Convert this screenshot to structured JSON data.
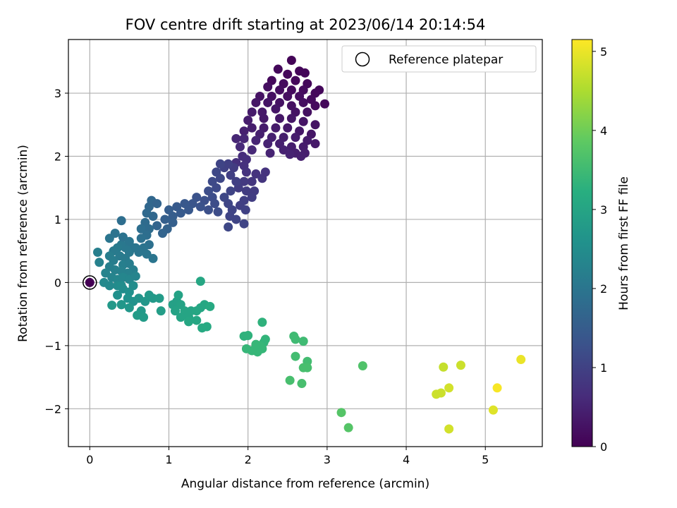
{
  "chart_data": {
    "type": "scatter",
    "title": "FOV centre drift starting at 2023/06/14 20:14:54",
    "xlabel": "Angular distance from reference (arcmin)",
    "ylabel": "Rotation from reference (arcmin)",
    "xlim": [
      -0.27,
      5.72
    ],
    "ylim": [
      -2.6,
      3.85
    ],
    "xticks": [
      0,
      1,
      2,
      3,
      4,
      5
    ],
    "yticks": [
      -2,
      -1,
      0,
      1,
      2,
      3
    ],
    "grid": true,
    "legend": {
      "position": "top-right",
      "entries": [
        "Reference platepar"
      ]
    },
    "colorbar": {
      "label": "Hours from first FF file",
      "min": 0,
      "max": 5.15,
      "ticks": [
        0,
        1,
        2,
        3,
        4,
        5
      ],
      "colormap": "viridis"
    },
    "reference_point": {
      "x": 0,
      "y": 0
    },
    "points": [
      {
        "x": 2.55,
        "y": 3.52,
        "h": 0.05
      },
      {
        "x": 2.38,
        "y": 3.38,
        "h": 0.1
      },
      {
        "x": 2.5,
        "y": 3.3,
        "h": 0.1
      },
      {
        "x": 2.65,
        "y": 3.35,
        "h": 0.08
      },
      {
        "x": 2.72,
        "y": 3.32,
        "h": 0.08
      },
      {
        "x": 2.3,
        "y": 3.2,
        "h": 0.12
      },
      {
        "x": 2.45,
        "y": 3.15,
        "h": 0.15
      },
      {
        "x": 2.6,
        "y": 3.2,
        "h": 0.12
      },
      {
        "x": 2.75,
        "y": 3.15,
        "h": 0.1
      },
      {
        "x": 2.9,
        "y": 3.05,
        "h": 0.1
      },
      {
        "x": 2.85,
        "y": 3.0,
        "h": 0.12
      },
      {
        "x": 2.7,
        "y": 3.05,
        "h": 0.15
      },
      {
        "x": 2.55,
        "y": 3.05,
        "h": 0.15
      },
      {
        "x": 2.4,
        "y": 3.05,
        "h": 0.18
      },
      {
        "x": 2.25,
        "y": 3.1,
        "h": 0.2
      },
      {
        "x": 2.15,
        "y": 2.95,
        "h": 0.25
      },
      {
        "x": 2.3,
        "y": 2.95,
        "h": 0.22
      },
      {
        "x": 2.5,
        "y": 2.95,
        "h": 0.2
      },
      {
        "x": 2.65,
        "y": 2.95,
        "h": 0.18
      },
      {
        "x": 2.8,
        "y": 2.9,
        "h": 0.15
      },
      {
        "x": 2.97,
        "y": 2.83,
        "h": 0.1
      },
      {
        "x": 2.85,
        "y": 2.8,
        "h": 0.15
      },
      {
        "x": 2.7,
        "y": 2.85,
        "h": 0.2
      },
      {
        "x": 2.55,
        "y": 2.8,
        "h": 0.22
      },
      {
        "x": 2.4,
        "y": 2.85,
        "h": 0.25
      },
      {
        "x": 2.25,
        "y": 2.85,
        "h": 0.28
      },
      {
        "x": 2.1,
        "y": 2.85,
        "h": 0.3
      },
      {
        "x": 2.35,
        "y": 2.75,
        "h": 0.3
      },
      {
        "x": 2.6,
        "y": 2.7,
        "h": 0.25
      },
      {
        "x": 2.75,
        "y": 2.7,
        "h": 0.22
      },
      {
        "x": 2.18,
        "y": 2.7,
        "h": 0.35
      },
      {
        "x": 2.05,
        "y": 2.7,
        "h": 0.38
      },
      {
        "x": 2.0,
        "y": 2.57,
        "h": 0.4
      },
      {
        "x": 2.2,
        "y": 2.6,
        "h": 0.35
      },
      {
        "x": 2.4,
        "y": 2.6,
        "h": 0.32
      },
      {
        "x": 2.55,
        "y": 2.6,
        "h": 0.3
      },
      {
        "x": 2.7,
        "y": 2.55,
        "h": 0.28
      },
      {
        "x": 2.85,
        "y": 2.5,
        "h": 0.25
      },
      {
        "x": 2.8,
        "y": 2.35,
        "h": 0.3
      },
      {
        "x": 2.65,
        "y": 2.4,
        "h": 0.32
      },
      {
        "x": 2.5,
        "y": 2.45,
        "h": 0.35
      },
      {
        "x": 2.35,
        "y": 2.45,
        "h": 0.38
      },
      {
        "x": 2.2,
        "y": 2.45,
        "h": 0.4
      },
      {
        "x": 2.05,
        "y": 2.45,
        "h": 0.42
      },
      {
        "x": 1.95,
        "y": 2.4,
        "h": 0.45
      },
      {
        "x": 2.15,
        "y": 2.35,
        "h": 0.45
      },
      {
        "x": 2.3,
        "y": 2.3,
        "h": 0.45
      },
      {
        "x": 2.45,
        "y": 2.3,
        "h": 0.42
      },
      {
        "x": 2.6,
        "y": 2.3,
        "h": 0.4
      },
      {
        "x": 2.75,
        "y": 2.25,
        "h": 0.38
      },
      {
        "x": 2.85,
        "y": 2.2,
        "h": 0.35
      },
      {
        "x": 2.7,
        "y": 2.15,
        "h": 0.4
      },
      {
        "x": 2.55,
        "y": 2.15,
        "h": 0.42
      },
      {
        "x": 2.4,
        "y": 2.2,
        "h": 0.45
      },
      {
        "x": 2.25,
        "y": 2.2,
        "h": 0.5
      },
      {
        "x": 2.1,
        "y": 2.25,
        "h": 0.52
      },
      {
        "x": 1.95,
        "y": 2.28,
        "h": 0.55
      },
      {
        "x": 1.85,
        "y": 2.28,
        "h": 0.55
      },
      {
        "x": 1.9,
        "y": 2.15,
        "h": 0.6
      },
      {
        "x": 2.05,
        "y": 2.1,
        "h": 0.58
      },
      {
        "x": 2.28,
        "y": 2.05,
        "h": 0.5
      },
      {
        "x": 2.45,
        "y": 2.1,
        "h": 0.48
      },
      {
        "x": 2.6,
        "y": 2.05,
        "h": 0.45
      },
      {
        "x": 2.72,
        "y": 2.05,
        "h": 0.42
      },
      {
        "x": 2.53,
        "y": 2.03,
        "h": 0.5
      },
      {
        "x": 2.67,
        "y": 2.0,
        "h": 0.45
      },
      {
        "x": 1.93,
        "y": 2.0,
        "h": 0.65
      },
      {
        "x": 1.98,
        "y": 1.95,
        "h": 0.68
      },
      {
        "x": 1.85,
        "y": 1.9,
        "h": 0.7
      },
      {
        "x": 1.95,
        "y": 1.85,
        "h": 0.72
      },
      {
        "x": 1.98,
        "y": 1.75,
        "h": 0.75
      },
      {
        "x": 2.1,
        "y": 1.72,
        "h": 0.75
      },
      {
        "x": 2.18,
        "y": 1.65,
        "h": 0.78
      },
      {
        "x": 2.22,
        "y": 1.75,
        "h": 0.75
      },
      {
        "x": 2.05,
        "y": 1.6,
        "h": 0.8
      },
      {
        "x": 1.95,
        "y": 1.6,
        "h": 0.85
      },
      {
        "x": 1.88,
        "y": 1.5,
        "h": 0.9
      },
      {
        "x": 1.98,
        "y": 1.45,
        "h": 0.9
      },
      {
        "x": 2.08,
        "y": 1.45,
        "h": 0.88
      },
      {
        "x": 2.05,
        "y": 1.35,
        "h": 0.92
      },
      {
        "x": 1.95,
        "y": 1.3,
        "h": 0.95
      },
      {
        "x": 1.9,
        "y": 1.22,
        "h": 0.98
      },
      {
        "x": 1.97,
        "y": 1.15,
        "h": 1.0
      },
      {
        "x": 1.85,
        "y": 1.0,
        "h": 1.05
      },
      {
        "x": 1.95,
        "y": 0.93,
        "h": 1.05
      },
      {
        "x": 1.75,
        "y": 0.88,
        "h": 1.1
      },
      {
        "x": 1.77,
        "y": 1.05,
        "h": 1.05
      },
      {
        "x": 1.8,
        "y": 1.15,
        "h": 1.05
      },
      {
        "x": 1.75,
        "y": 1.25,
        "h": 1.08
      },
      {
        "x": 1.7,
        "y": 1.35,
        "h": 1.1
      },
      {
        "x": 1.78,
        "y": 1.45,
        "h": 1.05
      },
      {
        "x": 1.85,
        "y": 1.6,
        "h": 0.95
      },
      {
        "x": 1.78,
        "y": 1.7,
        "h": 0.95
      },
      {
        "x": 1.82,
        "y": 1.82,
        "h": 0.9
      },
      {
        "x": 1.7,
        "y": 1.82,
        "h": 1.0
      },
      {
        "x": 1.75,
        "y": 1.88,
        "h": 0.98
      },
      {
        "x": 1.65,
        "y": 1.88,
        "h": 1.05
      },
      {
        "x": 1.6,
        "y": 1.75,
        "h": 1.1
      },
      {
        "x": 1.65,
        "y": 1.65,
        "h": 1.1
      },
      {
        "x": 1.55,
        "y": 1.6,
        "h": 1.15
      },
      {
        "x": 1.6,
        "y": 1.5,
        "h": 1.15
      },
      {
        "x": 1.5,
        "y": 1.45,
        "h": 1.2
      },
      {
        "x": 1.55,
        "y": 1.35,
        "h": 1.2
      },
      {
        "x": 1.45,
        "y": 1.3,
        "h": 1.25
      },
      {
        "x": 1.58,
        "y": 1.25,
        "h": 1.2
      },
      {
        "x": 1.62,
        "y": 1.12,
        "h": 1.2
      },
      {
        "x": 1.5,
        "y": 1.15,
        "h": 1.25
      },
      {
        "x": 1.4,
        "y": 1.2,
        "h": 1.3
      },
      {
        "x": 1.35,
        "y": 1.35,
        "h": 1.3
      },
      {
        "x": 1.3,
        "y": 1.25,
        "h": 1.35
      },
      {
        "x": 1.25,
        "y": 1.15,
        "h": 1.4
      },
      {
        "x": 1.2,
        "y": 1.25,
        "h": 1.4
      },
      {
        "x": 1.15,
        "y": 1.1,
        "h": 1.45
      },
      {
        "x": 1.1,
        "y": 1.2,
        "h": 1.45
      },
      {
        "x": 1.05,
        "y": 1.05,
        "h": 1.5
      },
      {
        "x": 1.0,
        "y": 1.15,
        "h": 1.5
      },
      {
        "x": 0.95,
        "y": 1.0,
        "h": 1.55
      },
      {
        "x": 1.05,
        "y": 0.95,
        "h": 1.55
      },
      {
        "x": 0.98,
        "y": 0.85,
        "h": 1.6
      },
      {
        "x": 0.92,
        "y": 0.78,
        "h": 1.65
      },
      {
        "x": 0.85,
        "y": 0.9,
        "h": 1.65
      },
      {
        "x": 0.8,
        "y": 1.05,
        "h": 1.7
      },
      {
        "x": 0.75,
        "y": 1.2,
        "h": 1.7
      },
      {
        "x": 0.78,
        "y": 1.3,
        "h": 1.7
      },
      {
        "x": 0.85,
        "y": 1.25,
        "h": 1.65
      },
      {
        "x": 0.72,
        "y": 1.1,
        "h": 1.75
      },
      {
        "x": 0.7,
        "y": 0.95,
        "h": 1.8
      },
      {
        "x": 0.75,
        "y": 0.85,
        "h": 1.8
      },
      {
        "x": 0.65,
        "y": 0.85,
        "h": 1.85
      },
      {
        "x": 0.72,
        "y": 0.75,
        "h": 1.85
      },
      {
        "x": 0.65,
        "y": 0.7,
        "h": 1.9
      },
      {
        "x": 0.75,
        "y": 0.6,
        "h": 1.9
      },
      {
        "x": 0.68,
        "y": 0.55,
        "h": 1.95
      },
      {
        "x": 0.62,
        "y": 0.48,
        "h": 2.0
      },
      {
        "x": 0.72,
        "y": 0.45,
        "h": 2.0
      },
      {
        "x": 0.8,
        "y": 0.38,
        "h": 2.0
      },
      {
        "x": 0.55,
        "y": 0.55,
        "h": 2.0
      },
      {
        "x": 0.5,
        "y": 0.48,
        "h": 2.05
      },
      {
        "x": 0.45,
        "y": 0.55,
        "h": 2.05
      },
      {
        "x": 0.4,
        "y": 0.6,
        "h": 2.05
      },
      {
        "x": 0.35,
        "y": 0.55,
        "h": 2.1
      },
      {
        "x": 0.3,
        "y": 0.5,
        "h": 2.1
      },
      {
        "x": 0.25,
        "y": 0.42,
        "h": 2.15
      },
      {
        "x": 0.3,
        "y": 0.35,
        "h": 2.15
      },
      {
        "x": 0.38,
        "y": 0.42,
        "h": 2.1
      },
      {
        "x": 0.45,
        "y": 0.38,
        "h": 2.1
      },
      {
        "x": 0.42,
        "y": 0.28,
        "h": 2.2
      },
      {
        "x": 0.5,
        "y": 0.3,
        "h": 2.15
      },
      {
        "x": 0.55,
        "y": 0.2,
        "h": 2.2
      },
      {
        "x": 0.48,
        "y": 0.15,
        "h": 2.25
      },
      {
        "x": 0.4,
        "y": 0.18,
        "h": 2.25
      },
      {
        "x": 0.32,
        "y": 0.2,
        "h": 2.25
      },
      {
        "x": 0.25,
        "y": 0.25,
        "h": 2.2
      },
      {
        "x": 0.2,
        "y": 0.15,
        "h": 2.3
      },
      {
        "x": 0.28,
        "y": 0.08,
        "h": 2.3
      },
      {
        "x": 0.35,
        "y": 0.05,
        "h": 2.35
      },
      {
        "x": 0.42,
        "y": 0.08,
        "h": 2.35
      },
      {
        "x": 0.5,
        "y": 0.05,
        "h": 2.35
      },
      {
        "x": 0.58,
        "y": 0.1,
        "h": 2.3
      },
      {
        "x": 0.25,
        "y": -0.05,
        "h": 2.4
      },
      {
        "x": 0.18,
        "y": 0.0,
        "h": 2.4
      },
      {
        "x": 0.12,
        "y": 0.32,
        "h": 2.25
      },
      {
        "x": 0.1,
        "y": 0.48,
        "h": 2.2
      },
      {
        "x": 0.25,
        "y": 0.7,
        "h": 2.0
      },
      {
        "x": 0.32,
        "y": 0.78,
        "h": 1.95
      },
      {
        "x": 0.42,
        "y": 0.72,
        "h": 1.95
      },
      {
        "x": 0.4,
        "y": 0.98,
        "h": 1.85
      },
      {
        "x": 0.5,
        "y": 0.65,
        "h": 2.0
      },
      {
        "x": 0.58,
        "y": 0.55,
        "h": 2.0
      },
      {
        "x": 0.35,
        "y": -0.05,
        "h": 2.45
      },
      {
        "x": 0.42,
        "y": -0.1,
        "h": 2.5
      },
      {
        "x": 0.5,
        "y": -0.15,
        "h": 2.55
      },
      {
        "x": 0.55,
        "y": -0.05,
        "h": 2.5
      },
      {
        "x": 0.48,
        "y": -0.25,
        "h": 2.6
      },
      {
        "x": 0.55,
        "y": -0.3,
        "h": 2.6
      },
      {
        "x": 0.62,
        "y": -0.25,
        "h": 2.65
      },
      {
        "x": 0.4,
        "y": -0.35,
        "h": 2.6
      },
      {
        "x": 0.35,
        "y": -0.2,
        "h": 2.55
      },
      {
        "x": 0.4,
        "y": -0.05,
        "h": 2.5
      },
      {
        "x": 0.5,
        "y": -0.4,
        "h": 2.7
      },
      {
        "x": 0.7,
        "y": -0.3,
        "h": 2.7
      },
      {
        "x": 0.75,
        "y": -0.2,
        "h": 2.75
      },
      {
        "x": 0.8,
        "y": -0.25,
        "h": 2.75
      },
      {
        "x": 0.65,
        "y": -0.45,
        "h": 2.75
      },
      {
        "x": 0.6,
        "y": -0.52,
        "h": 2.8
      },
      {
        "x": 0.68,
        "y": -0.55,
        "h": 2.8
      },
      {
        "x": 0.9,
        "y": -0.45,
        "h": 2.85
      },
      {
        "x": 0.88,
        "y": -0.25,
        "h": 2.8
      },
      {
        "x": 0.4,
        "y": -0.35,
        "h": 2.7
      },
      {
        "x": 0.28,
        "y": -0.36,
        "h": 2.75
      },
      {
        "x": 1.05,
        "y": -0.35,
        "h": 2.9
      },
      {
        "x": 1.1,
        "y": -0.3,
        "h": 2.9
      },
      {
        "x": 1.15,
        "y": -0.35,
        "h": 2.95
      },
      {
        "x": 1.12,
        "y": -0.2,
        "h": 2.95
      },
      {
        "x": 1.08,
        "y": -0.45,
        "h": 2.95
      },
      {
        "x": 1.2,
        "y": -0.45,
        "h": 3.0
      },
      {
        "x": 1.25,
        "y": -0.55,
        "h": 3.0
      },
      {
        "x": 1.15,
        "y": -0.55,
        "h": 3.0
      },
      {
        "x": 1.28,
        "y": -0.45,
        "h": 3.0
      },
      {
        "x": 1.35,
        "y": -0.45,
        "h": 3.05
      },
      {
        "x": 1.4,
        "y": -0.4,
        "h": 3.05
      },
      {
        "x": 1.45,
        "y": -0.35,
        "h": 3.05
      },
      {
        "x": 1.52,
        "y": -0.38,
        "h": 3.1
      },
      {
        "x": 1.4,
        "y": 0.02,
        "h": 3.05
      },
      {
        "x": 1.42,
        "y": -0.72,
        "h": 3.1
      },
      {
        "x": 1.48,
        "y": -0.7,
        "h": 3.1
      },
      {
        "x": 1.35,
        "y": -0.6,
        "h": 3.05
      },
      {
        "x": 1.25,
        "y": -0.62,
        "h": 3.05
      },
      {
        "x": 1.95,
        "y": -0.85,
        "h": 3.3
      },
      {
        "x": 2.0,
        "y": -0.84,
        "h": 3.3
      },
      {
        "x": 2.18,
        "y": -0.63,
        "h": 3.3
      },
      {
        "x": 2.2,
        "y": -0.95,
        "h": 3.35
      },
      {
        "x": 2.22,
        "y": -0.9,
        "h": 3.35
      },
      {
        "x": 2.15,
        "y": -1.0,
        "h": 3.4
      },
      {
        "x": 2.18,
        "y": -1.05,
        "h": 3.4
      },
      {
        "x": 2.12,
        "y": -1.1,
        "h": 3.4
      },
      {
        "x": 2.05,
        "y": -1.08,
        "h": 3.4
      },
      {
        "x": 1.98,
        "y": -1.05,
        "h": 3.4
      },
      {
        "x": 2.1,
        "y": -0.98,
        "h": 3.4
      },
      {
        "x": 2.58,
        "y": -0.85,
        "h": 3.5
      },
      {
        "x": 2.6,
        "y": -0.9,
        "h": 3.5
      },
      {
        "x": 2.7,
        "y": -0.93,
        "h": 3.5
      },
      {
        "x": 2.6,
        "y": -1.17,
        "h": 3.55
      },
      {
        "x": 2.75,
        "y": -1.25,
        "h": 3.55
      },
      {
        "x": 2.7,
        "y": -1.35,
        "h": 3.6
      },
      {
        "x": 2.75,
        "y": -1.35,
        "h": 3.6
      },
      {
        "x": 2.53,
        "y": -1.55,
        "h": 3.6
      },
      {
        "x": 2.68,
        "y": -1.6,
        "h": 3.6
      },
      {
        "x": 3.45,
        "y": -1.32,
        "h": 3.7
      },
      {
        "x": 3.18,
        "y": -2.06,
        "h": 3.75
      },
      {
        "x": 3.27,
        "y": -2.3,
        "h": 3.75
      },
      {
        "x": 4.47,
        "y": -1.34,
        "h": 4.7
      },
      {
        "x": 4.69,
        "y": -1.31,
        "h": 4.75
      },
      {
        "x": 4.38,
        "y": -1.77,
        "h": 4.75
      },
      {
        "x": 4.44,
        "y": -1.75,
        "h": 4.75
      },
      {
        "x": 4.54,
        "y": -1.67,
        "h": 4.8
      },
      {
        "x": 4.54,
        "y": -2.32,
        "h": 4.8
      },
      {
        "x": 5.1,
        "y": -2.02,
        "h": 4.9
      },
      {
        "x": 5.15,
        "y": -1.67,
        "h": 5.1
      },
      {
        "x": 5.45,
        "y": -1.22,
        "h": 5.0
      }
    ]
  }
}
